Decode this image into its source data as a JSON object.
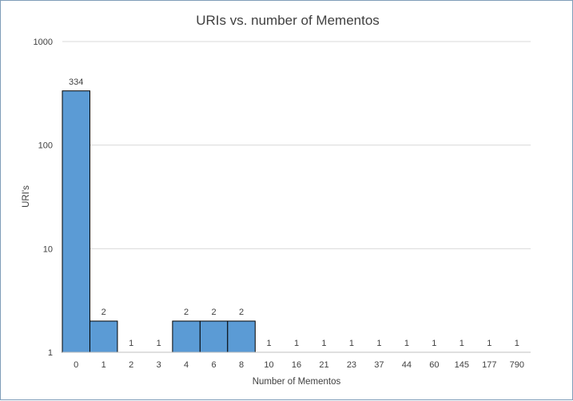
{
  "chart_data": {
    "type": "bar",
    "title": "URIs vs. number of Mementos",
    "xlabel": "Number of Mementos",
    "ylabel": "URI's",
    "yscale": "log",
    "ylim": [
      1,
      1000
    ],
    "yticks": [
      "1",
      "10",
      "100",
      "1000"
    ],
    "categories": [
      "0",
      "1",
      "2",
      "3",
      "4",
      "6",
      "8",
      "10",
      "16",
      "21",
      "23",
      "37",
      "44",
      "60",
      "145",
      "177",
      "790"
    ],
    "values": [
      334,
      2,
      1,
      1,
      2,
      2,
      2,
      1,
      1,
      1,
      1,
      1,
      1,
      1,
      1,
      1,
      1
    ],
    "data_labels": [
      "334",
      "2",
      "1",
      "1",
      "2",
      "2",
      "2",
      "1",
      "1",
      "1",
      "1",
      "1",
      "1",
      "1",
      "1",
      "1",
      "1"
    ],
    "grid": true,
    "legend": "none",
    "colors": {
      "bar": "#5b9bd5",
      "bar_edge": "#000000",
      "grid": "#d9d9d9",
      "text": "#404040"
    }
  }
}
